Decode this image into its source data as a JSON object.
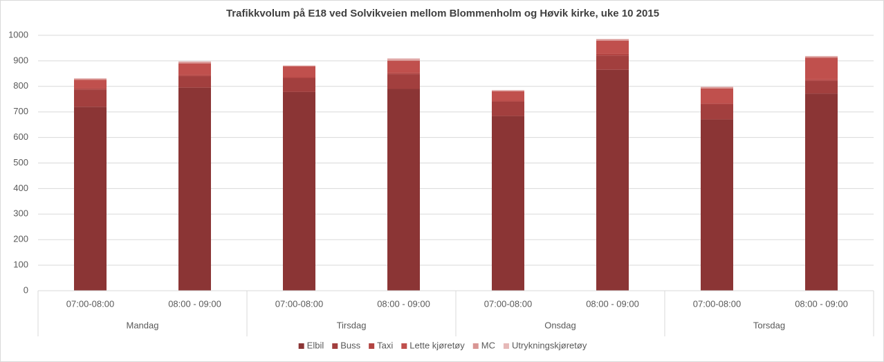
{
  "chart_data": {
    "type": "stacked_bar",
    "title": "Trafikkvolum på E18 ved Solvikveien mellom Blommenholm og Høvik kirke, uke 10 2015",
    "categories": [
      "07:00-08:00",
      "08:00 - 09:00",
      "07:00-08:00",
      "08:00 - 09:00",
      "07:00-08:00",
      "08:00 - 09:00",
      "07:00-08:00",
      "08:00 - 09:00"
    ],
    "groups": [
      "Mandag",
      "Tirsdag",
      "Onsdag",
      "Torsdag"
    ],
    "series": [
      {
        "name": "Elbil",
        "color": "#8b3535",
        "values": [
          720,
          795,
          778,
          790,
          684,
          865,
          671,
          772
        ]
      },
      {
        "name": "Buss",
        "color": "#a23f3e",
        "values": [
          68,
          45,
          54,
          58,
          56,
          56,
          58,
          50
        ]
      },
      {
        "name": "Taxi",
        "color": "#b24442",
        "values": [
          5,
          5,
          4,
          5,
          4,
          6,
          5,
          5
        ]
      },
      {
        "name": "Lette kjøretøy",
        "color": "#c0504d",
        "values": [
          33,
          45,
          42,
          47,
          37,
          52,
          58,
          85
        ]
      },
      {
        "name": "MC",
        "color": "#d99694",
        "values": [
          4,
          6,
          3,
          6,
          3,
          5,
          5,
          5
        ]
      },
      {
        "name": "Utrykningskjøretøy",
        "color": "#e6b9b8",
        "values": [
          2,
          2,
          1,
          4,
          2,
          2,
          2,
          2
        ]
      }
    ],
    "ylim": [
      0,
      1000
    ],
    "yticks": [
      0,
      100,
      200,
      300,
      400,
      500,
      600,
      700,
      800,
      900,
      1000
    ],
    "grid": true,
    "legend": "bottom"
  }
}
